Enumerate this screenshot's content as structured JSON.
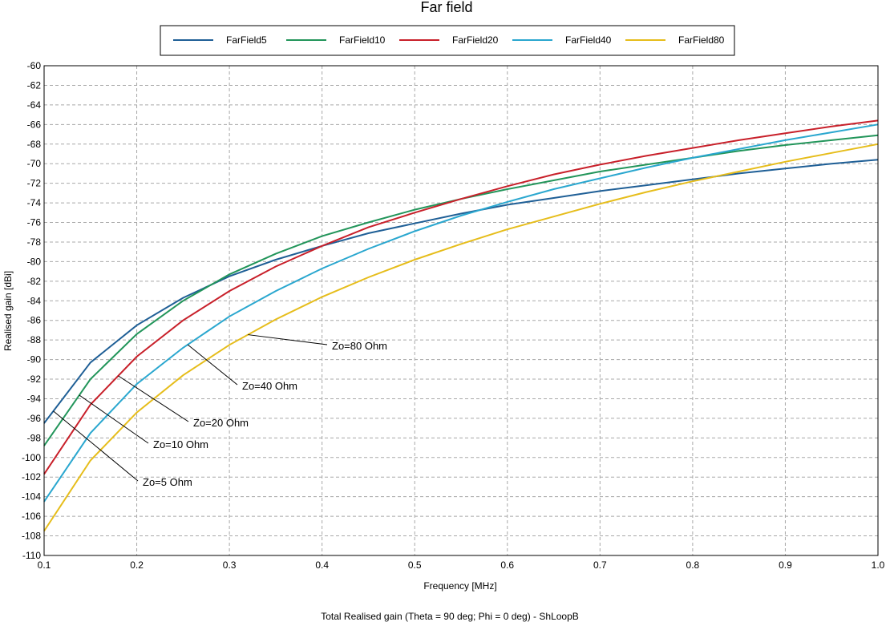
{
  "chart_data": {
    "type": "line",
    "title": "Far field",
    "xlabel": "Frequency [MHz]",
    "ylabel": "Realised gain [dBi]",
    "footer": "Total Realised gain (Theta = 90 deg; Phi = 0 deg) - ShLoopB",
    "xlim": [
      0.1,
      1.0
    ],
    "ylim": [
      -110,
      -60
    ],
    "grid": true,
    "legend_position": "top",
    "x": [
      0.1,
      0.15,
      0.2,
      0.25,
      0.3,
      0.35,
      0.4,
      0.45,
      0.5,
      0.55,
      0.6,
      0.65,
      0.7,
      0.75,
      0.8,
      0.85,
      0.9,
      0.95,
      1.0
    ],
    "x_ticks": [
      "0.1",
      "0.2",
      "0.3",
      "0.4",
      "0.5",
      "0.6",
      "0.7",
      "0.8",
      "0.9",
      "1.0"
    ],
    "y_ticks": [
      "-60",
      "-62",
      "-64",
      "-66",
      "-68",
      "-70",
      "-72",
      "-74",
      "-76",
      "-78",
      "-80",
      "-82",
      "-84",
      "-86",
      "-88",
      "-90",
      "-92",
      "-94",
      "-96",
      "-98",
      "-100",
      "-102",
      "-104",
      "-106",
      "-108",
      "-110"
    ],
    "series": [
      {
        "name": "FarField5",
        "color": "#1f5f96",
        "values": [
          -96.5,
          -90.3,
          -86.5,
          -83.7,
          -81.5,
          -79.8,
          -78.4,
          -77.1,
          -76.1,
          -75.1,
          -74.2,
          -73.5,
          -72.8,
          -72.2,
          -71.6,
          -71.0,
          -70.5,
          -70.0,
          -69.6
        ]
      },
      {
        "name": "FarField10",
        "color": "#22955a",
        "values": [
          -98.8,
          -92.0,
          -87.4,
          -84.0,
          -81.3,
          -79.2,
          -77.4,
          -76.0,
          -74.7,
          -73.6,
          -72.6,
          -71.7,
          -70.8,
          -70.1,
          -69.4,
          -68.7,
          -68.1,
          -67.6,
          -67.1
        ]
      },
      {
        "name": "FarField20",
        "color": "#c8202a",
        "values": [
          -101.7,
          -94.6,
          -89.7,
          -86.0,
          -83.0,
          -80.5,
          -78.4,
          -76.5,
          -75.0,
          -73.6,
          -72.3,
          -71.1,
          -70.1,
          -69.2,
          -68.4,
          -67.6,
          -66.9,
          -66.2,
          -65.6
        ]
      },
      {
        "name": "FarField40",
        "color": "#2aa7cf",
        "values": [
          -104.5,
          -97.5,
          -92.5,
          -88.8,
          -85.6,
          -83.0,
          -80.7,
          -78.7,
          -76.9,
          -75.3,
          -73.9,
          -72.6,
          -71.5,
          -70.4,
          -69.4,
          -68.5,
          -67.6,
          -66.8,
          -66.0
        ]
      },
      {
        "name": "FarField80",
        "color": "#e6bd1b",
        "values": [
          -107.5,
          -100.3,
          -95.4,
          -91.6,
          -88.5,
          -85.9,
          -83.6,
          -81.6,
          -79.8,
          -78.2,
          -76.7,
          -75.4,
          -74.1,
          -72.9,
          -71.8,
          -70.8,
          -69.8,
          -68.9,
          -68.0
        ]
      }
    ],
    "annotations": [
      {
        "text": "Zo=5 Ohm",
        "series": "FarField5",
        "at_x": 0.11
      },
      {
        "text": "Zo=10 Ohm",
        "series": "FarField10",
        "at_x": 0.138
      },
      {
        "text": "Zo=20 Ohm",
        "series": "FarField20",
        "at_x": 0.18
      },
      {
        "text": "Zo=40 Ohm",
        "series": "FarField40",
        "at_x": 0.255
      },
      {
        "text": "Zo=80 Ohm",
        "series": "FarField80",
        "at_x": 0.32
      }
    ]
  }
}
